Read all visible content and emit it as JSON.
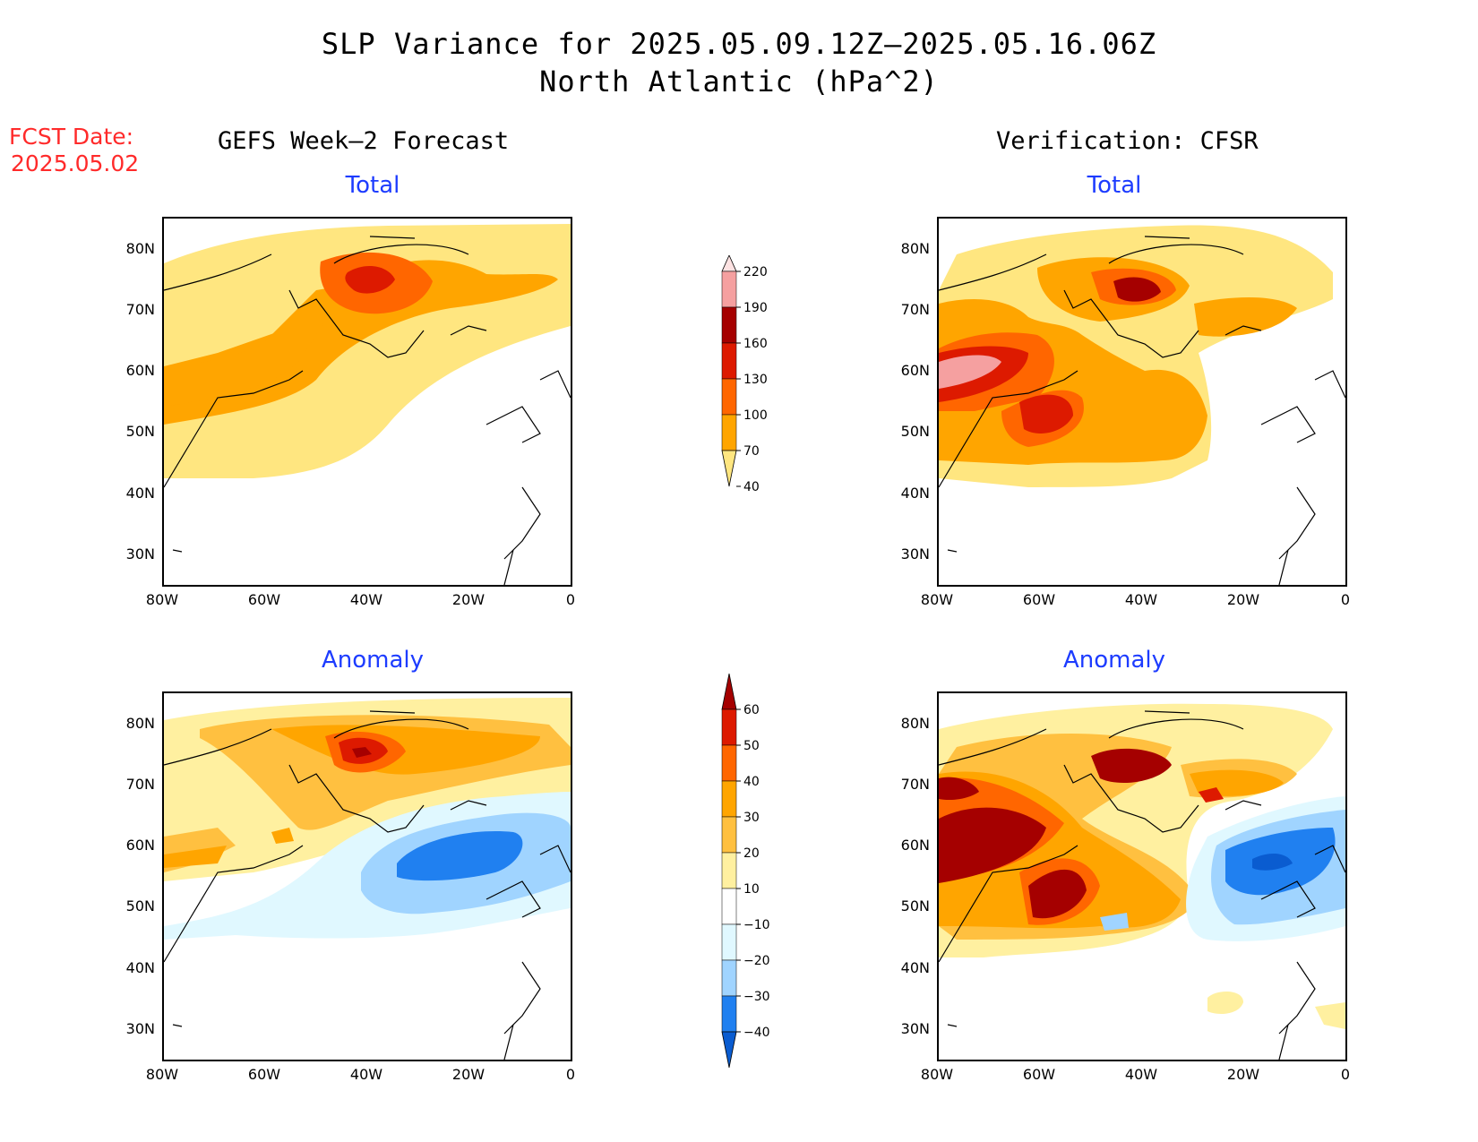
{
  "title": {
    "line1": "SLP Variance for 2025.05.09.12Z–2025.05.16.06Z",
    "line2": "North Atlantic (hPa^2)"
  },
  "forecast_date": {
    "label": "FCST Date:",
    "value": "2025.05.02"
  },
  "columns": {
    "left": "GEFS Week–2 Forecast",
    "right": "Verification: CFSR"
  },
  "panels": {
    "total_label": "Total",
    "anomaly_label": "Anomaly"
  },
  "axes": {
    "lat_ticks": [
      "80N",
      "70N",
      "60N",
      "50N",
      "40N",
      "30N"
    ],
    "lon_ticks": [
      "80W",
      "60W",
      "40W",
      "20W",
      "0"
    ]
  },
  "colorbar_total": {
    "levels": [
      "220",
      "190",
      "160",
      "130",
      "100",
      "70",
      "40"
    ],
    "colors": [
      "#fde2e2",
      "#f5a0a0",
      "#a50000",
      "#dd1a00",
      "#ff6600",
      "#ffa500",
      "#ffe680"
    ]
  },
  "colorbar_anomaly": {
    "levels": [
      "60",
      "50",
      "40",
      "30",
      "20",
      "10",
      "−10",
      "−20",
      "−30",
      "−40"
    ],
    "colors": [
      "#a50000",
      "#dd1a00",
      "#ff6600",
      "#ffa500",
      "#ffc040",
      "#fff0a0",
      "#ffffff",
      "#e0f8ff",
      "#a0d4ff",
      "#2080f0",
      "#0a5cd0"
    ]
  }
}
